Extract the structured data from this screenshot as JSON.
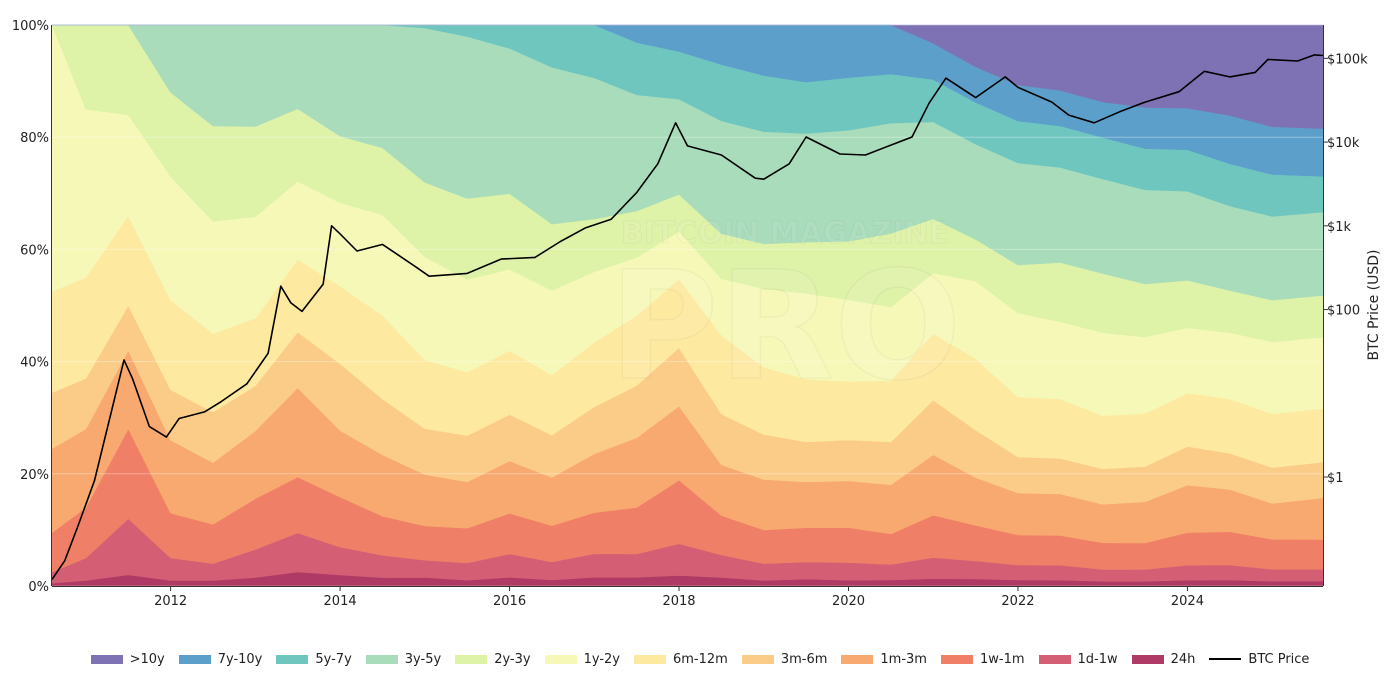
{
  "chart_data": {
    "type": "area",
    "stacking": "percent",
    "x": [
      2010.6,
      2011.0,
      2011.5,
      2012.0,
      2012.5,
      2013.0,
      2013.5,
      2014.0,
      2014.5,
      2015.0,
      2015.5,
      2016.0,
      2016.5,
      2017.0,
      2017.5,
      2018.0,
      2018.5,
      2019.0,
      2019.5,
      2020.0,
      2020.5,
      2021.0,
      2021.5,
      2022.0,
      2022.5,
      2023.0,
      2023.5,
      2024.0,
      2024.5,
      2025.0,
      2025.6
    ],
    "x_ticks": [
      "2012",
      "2014",
      "2016",
      "2018",
      "2020",
      "2022",
      "2024"
    ],
    "x_tick_values": [
      2012,
      2014,
      2016,
      2018,
      2020,
      2022,
      2024
    ],
    "y_ticks": [
      "0%",
      "20%",
      "40%",
      "60%",
      "80%",
      "100%"
    ],
    "y_tick_values": [
      0,
      20,
      40,
      60,
      80,
      100
    ],
    "ylim": [
      0,
      100
    ],
    "y2label": "BTC Price (USD)",
    "y2_ticks": [
      "$1",
      "$100",
      "$1k",
      "$10k",
      "$100k"
    ],
    "y2_tick_values": [
      1,
      100,
      1000,
      10000,
      100000
    ],
    "y2_scale": "log",
    "y2lim": [
      0.05,
      250000
    ],
    "legend_position": "bottom",
    "series": [
      {
        "name": "24h",
        "color": "#b03a66",
        "kind": "area",
        "values": [
          0.5,
          1,
          2,
          1,
          1,
          1.5,
          2.5,
          2,
          1.5,
          1.5,
          1,
          1.5,
          1,
          1.5,
          1.5,
          2,
          1.5,
          1,
          1.2,
          1,
          1,
          1.2,
          1.2,
          1,
          1,
          0.8,
          0.8,
          1,
          1,
          0.8,
          0.8
        ]
      },
      {
        "name": "1d-1w",
        "color": "#d45f74",
        "kind": "area",
        "values": [
          2,
          4,
          10,
          4,
          3,
          5,
          7,
          5,
          4,
          3,
          3,
          4,
          3,
          4,
          4,
          6,
          4,
          3,
          3,
          3,
          2.5,
          3.5,
          3,
          2.5,
          2.5,
          2,
          2,
          2.5,
          2.5,
          2,
          2
        ]
      },
      {
        "name": "1w-1m",
        "color": "#f07f67",
        "kind": "area",
        "values": [
          7,
          9,
          16,
          8,
          7,
          9,
          10,
          9,
          7,
          6,
          6,
          7,
          6,
          7,
          8,
          12,
          7,
          6,
          6,
          6,
          5,
          7,
          6,
          5,
          5,
          4.5,
          4.5,
          5.5,
          5.5,
          5,
          5
        ]
      },
      {
        "name": "1m-3m",
        "color": "#f8a96f",
        "kind": "area",
        "values": [
          15,
          14,
          14,
          13,
          11,
          12,
          16,
          12,
          11,
          9,
          8,
          9,
          8,
          10,
          12,
          14,
          9,
          9,
          8,
          8,
          8,
          10,
          8,
          7,
          7,
          6.5,
          7,
          8,
          7,
          6,
          7
        ]
      },
      {
        "name": "3m-6m",
        "color": "#fbcc88",
        "kind": "area",
        "values": [
          10,
          9,
          8,
          9,
          9,
          8,
          10,
          12,
          10,
          8,
          8,
          8,
          7,
          8,
          9,
          11,
          9,
          8,
          7,
          7,
          7,
          9,
          8,
          6,
          6,
          6,
          6,
          6.5,
          6,
          6,
          6
        ]
      },
      {
        "name": "6m-12m",
        "color": "#fde9a0",
        "kind": "area",
        "values": [
          18,
          18,
          16,
          16,
          14,
          12,
          13,
          14,
          15,
          12,
          11,
          11,
          10,
          11,
          12,
          13,
          14,
          12,
          11,
          10,
          10,
          11,
          12,
          10,
          10,
          9,
          9,
          9,
          9,
          9,
          9
        ]
      },
      {
        "name": "1y-2y",
        "color": "#f6f8b8",
        "kind": "area",
        "values": [
          47.5,
          30,
          18,
          22,
          20,
          18,
          14,
          15,
          18,
          18,
          16,
          14,
          14,
          12,
          10,
          9,
          10,
          14,
          15,
          14,
          12,
          10,
          13,
          14,
          13,
          14,
          13,
          11,
          11,
          12,
          12
        ]
      },
      {
        "name": "2y-3y",
        "color": "#def2a8",
        "kind": "area",
        "values": [
          0,
          15,
          16,
          15,
          17,
          16,
          13,
          12,
          12,
          13,
          14,
          13,
          11,
          9,
          8,
          7,
          8,
          8,
          9,
          10,
          12,
          9,
          7,
          8,
          10,
          10,
          9,
          8,
          7,
          7,
          7
        ]
      },
      {
        "name": "3y-5y",
        "color": "#a8dcba",
        "kind": "area",
        "values": [
          0,
          0,
          0,
          12,
          18,
          18,
          15,
          20,
          22,
          27,
          28,
          25,
          26,
          24,
          20,
          18,
          20,
          20,
          19,
          19,
          18,
          16,
          16,
          17,
          16,
          16,
          16,
          15,
          14,
          14,
          14
        ]
      },
      {
        "name": "5y-7y",
        "color": "#6fc6bf",
        "kind": "area",
        "values": [
          0,
          0,
          0,
          0,
          0,
          0,
          0,
          0,
          0,
          0.5,
          2,
          4,
          7,
          9,
          9,
          9,
          10,
          10,
          9,
          9,
          8,
          7,
          7,
          7,
          7,
          7,
          7,
          7,
          7,
          7,
          6
        ]
      },
      {
        "name": "7y-10y",
        "color": "#5b9fca",
        "kind": "area",
        "values": [
          0,
          0,
          0,
          0,
          0,
          0,
          0,
          0,
          0,
          0,
          0,
          0,
          0,
          0,
          3,
          5,
          7,
          9,
          10,
          9,
          8,
          6,
          6,
          6,
          6,
          6,
          7,
          7,
          8,
          8,
          8
        ]
      },
      {
        "name": ">10y",
        "color": "#7e72b4",
        "kind": "area",
        "values": [
          0,
          0,
          0,
          0,
          0,
          0,
          0,
          0,
          0,
          0,
          0,
          0,
          0,
          0,
          0,
          0,
          0,
          0,
          0,
          0,
          0,
          3,
          7,
          10,
          11,
          13,
          14,
          14,
          15,
          17,
          17.4
        ]
      },
      {
        "name": "BTC Price",
        "color": "#000000",
        "kind": "line",
        "axis": "y2",
        "x": [
          2010.6,
          2010.75,
          2010.9,
          2011.1,
          2011.3,
          2011.45,
          2011.55,
          2011.75,
          2011.95,
          2012.1,
          2012.4,
          2012.6,
          2012.9,
          2013.15,
          2013.3,
          2013.42,
          2013.55,
          2013.8,
          2013.9,
          2014.0,
          2014.2,
          2014.5,
          2014.9,
          2015.05,
          2015.5,
          2015.9,
          2016.3,
          2016.6,
          2016.9,
          2017.2,
          2017.5,
          2017.75,
          2017.96,
          2018.1,
          2018.5,
          2018.9,
          2019.0,
          2019.3,
          2019.5,
          2019.9,
          2020.2,
          2020.5,
          2020.75,
          2020.95,
          2021.15,
          2021.5,
          2021.85,
          2022.0,
          2022.4,
          2022.6,
          2022.9,
          2023.2,
          2023.5,
          2023.9,
          2024.2,
          2024.5,
          2024.8,
          2024.95,
          2025.3,
          2025.5,
          2025.6
        ],
        "values": [
          0.06,
          0.1,
          0.25,
          0.9,
          6,
          25,
          15,
          4,
          3,
          5,
          6,
          8,
          13,
          30,
          190,
          120,
          95,
          200,
          1000,
          800,
          500,
          600,
          320,
          250,
          270,
          400,
          420,
          650,
          950,
          1200,
          2500,
          5500,
          17000,
          9000,
          7000,
          3700,
          3600,
          5500,
          11500,
          7200,
          7000,
          9200,
          11500,
          29000,
          58000,
          34000,
          60000,
          45000,
          30000,
          21000,
          17000,
          23000,
          30000,
          40000,
          70000,
          60000,
          68000,
          97000,
          93000,
          110000,
          108000
        ]
      }
    ],
    "watermark": {
      "line1": "BITCOIN MAGAZINE",
      "line2": "PRO"
    }
  }
}
